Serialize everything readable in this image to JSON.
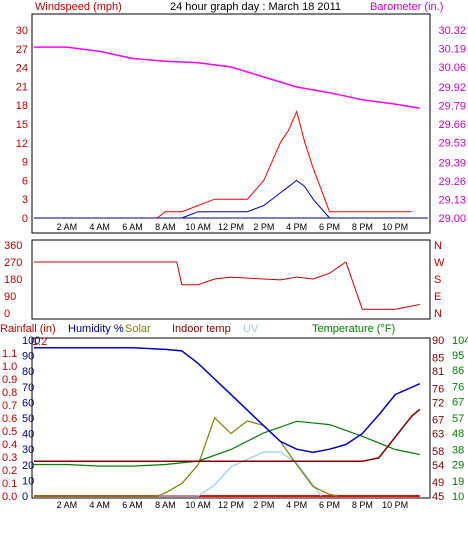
{
  "panel_top": {
    "title": "24 hour graph day : March 18 2011",
    "left_label": "Windspeed (mph)",
    "right_label": "Barometer (in.)",
    "left_ticks": [
      "0",
      "3",
      "6",
      "9",
      "12",
      "15",
      "18",
      "21",
      "24",
      "27",
      "30"
    ],
    "right_ticks": [
      "29.00",
      "29.13",
      "29.26",
      "29.39",
      "29.53",
      "29.66",
      "29.79",
      "29.92",
      "30.06",
      "30.19",
      "30.32"
    ],
    "hour_labels": [
      "2 AM",
      "4 AM",
      "6 AM",
      "8 AM",
      "10 AM",
      "12 PM",
      "2 PM",
      "4 PM",
      "6 PM",
      "8 PM",
      "10 PM"
    ]
  },
  "panel_mid": {
    "left_ticks": [
      "0",
      "90",
      "180",
      "270",
      "360"
    ],
    "right_labels": [
      "N",
      "W",
      "S",
      "E",
      "N"
    ]
  },
  "panel_bottom": {
    "header_rainfall": "Rainfall (in)",
    "header_humidity": "Humidity %",
    "header_solar": "Solar",
    "header_indoor": "Indoor temp",
    "header_uv": "UV",
    "header_temperature": "Temperature (°F)",
    "rain_ticks": [
      "0.0",
      "0.1",
      "0.2",
      "0.3",
      "0.4",
      "0.5",
      "0.6",
      "0.7",
      "0.8",
      "0.9",
      "1.0",
      "1.1",
      "1.2"
    ],
    "humidity_ticks": [
      "0",
      "10",
      "20",
      "30",
      "40",
      "50",
      "60",
      "70",
      "80",
      "90",
      "100"
    ],
    "indoor_ticks": [
      "45",
      "49",
      "54",
      "58",
      "63",
      "67",
      "72",
      "76",
      "81",
      "85",
      "90"
    ],
    "temp_ticks": [
      "10",
      "19",
      "29",
      "38",
      "48",
      "57",
      "67",
      "76",
      "86",
      "95",
      "104"
    ],
    "hour_labels": [
      "2 AM",
      "4 AM",
      "6 AM",
      "8 AM",
      "10 AM",
      "12 PM",
      "2 PM",
      "4 PM",
      "6 PM",
      "8 PM",
      "10 PM"
    ]
  },
  "colors": {
    "left_label": "#c00000",
    "right_label": "#cc00cc",
    "barometer": "#ff00ff",
    "wind_gust": "#ff0000",
    "wind_avg": "#0000cc",
    "direction": "#cc0000",
    "humidity": "#0000cc",
    "solar": "#808000",
    "indoor": "#800000",
    "uv": "#99ccee",
    "temperature": "#008000",
    "rainfall": "#ff0000",
    "temp_axis": "#008000"
  },
  "chart_data": {
    "type": "line",
    "x_unit": "hour of day",
    "barometer_inHg": {
      "x": [
        0,
        2,
        4,
        6,
        8,
        10,
        12,
        14,
        16,
        18,
        20,
        22,
        23.5
      ],
      "y": [
        30.2,
        30.2,
        30.17,
        30.12,
        30.1,
        30.09,
        30.06,
        29.99,
        29.92,
        29.88,
        29.83,
        29.8,
        29.77
      ]
    },
    "wind_gust_mph": {
      "x": [
        7.5,
        8,
        9,
        10,
        11,
        12,
        13,
        14,
        15,
        15.5,
        16,
        16.5,
        17,
        18,
        19,
        20,
        21,
        22,
        23
      ],
      "y": [
        0,
        1,
        1,
        2,
        3,
        3,
        3,
        6,
        12,
        14,
        17,
        12,
        8,
        1,
        1,
        1,
        1,
        1,
        1
      ]
    },
    "wind_avg_mph": {
      "x": [
        9,
        10,
        11,
        12,
        13,
        14,
        15,
        15.5,
        16,
        16.5,
        17,
        18
      ],
      "y": [
        0,
        1,
        1,
        1,
        1,
        2,
        4,
        5,
        6,
        5,
        3,
        0
      ]
    },
    "wind_direction_deg": {
      "x": [
        0,
        2,
        4,
        6,
        8,
        8.7,
        9,
        10,
        11,
        12,
        13,
        14,
        15,
        16,
        17,
        18,
        19,
        20,
        22,
        23.5
      ],
      "y": [
        270,
        270,
        270,
        270,
        270,
        270,
        150,
        150,
        180,
        190,
        185,
        180,
        175,
        190,
        180,
        210,
        270,
        20,
        20,
        45
      ]
    },
    "humidity_pct": {
      "x": [
        0,
        2,
        4,
        6,
        8,
        9,
        10,
        11,
        12,
        13,
        14,
        15,
        16,
        17,
        18,
        19,
        20,
        21,
        22,
        23.5
      ],
      "y": [
        95,
        95,
        95,
        95,
        94,
        93,
        85,
        75,
        65,
        55,
        45,
        35,
        30,
        28,
        30,
        33,
        40,
        52,
        65,
        72
      ]
    },
    "solar_rel": {
      "x": [
        0,
        7.5,
        8,
        9,
        10,
        11,
        12,
        13,
        14,
        15,
        16,
        17,
        18,
        18.5
      ],
      "y": [
        0,
        0,
        2,
        8,
        20,
        50,
        40,
        48,
        45,
        35,
        20,
        6,
        1,
        0
      ]
    },
    "indoor_temp_F": {
      "x": [
        0,
        4,
        8,
        12,
        16,
        18,
        19,
        20,
        21,
        22,
        23,
        23.5
      ],
      "y": [
        55,
        55,
        55,
        55,
        55,
        55,
        55,
        55,
        56,
        62,
        68,
        70
      ]
    },
    "uv_rel": {
      "x": [
        0,
        10,
        11,
        12,
        13,
        14,
        15,
        16,
        17,
        17.5
      ],
      "y": [
        0,
        0,
        3,
        8,
        10,
        12,
        12,
        9,
        3,
        0
      ]
    },
    "temperature_F": {
      "x": [
        0,
        2,
        4,
        6,
        8,
        10,
        12,
        14,
        16,
        18,
        20,
        22,
        23.5
      ],
      "y": [
        29,
        29,
        28,
        28,
        29,
        31,
        38,
        48,
        55,
        53,
        46,
        38,
        35
      ]
    },
    "rainfall_in": {
      "x": [
        0,
        23.5
      ],
      "y": [
        0,
        0
      ]
    }
  }
}
